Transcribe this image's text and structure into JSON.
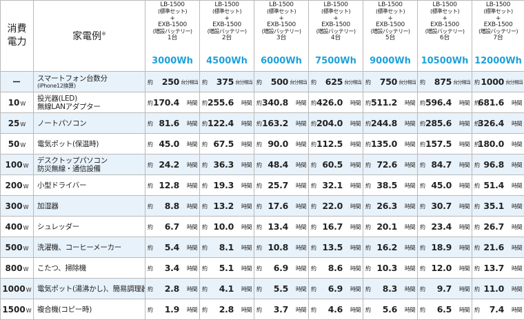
{
  "header": {
    "power_label_line1": "消費",
    "power_label_line2": "電力",
    "appliance_label": "家電例",
    "appliance_note": "※"
  },
  "config_lines": {
    "base_model": "LB-1500",
    "base_note": "(標準セット)",
    "plus": "+",
    "ext_model": "EXB-1500",
    "ext_note": "(増設バッテリー)"
  },
  "columns": [
    {
      "count": "1台",
      "capacity": "3000Wh"
    },
    {
      "count": "2台",
      "capacity": "4500Wh"
    },
    {
      "count": "3台",
      "capacity": "6000Wh"
    },
    {
      "count": "4台",
      "capacity": "7500Wh"
    },
    {
      "count": "5台",
      "capacity": "9000Wh"
    },
    {
      "count": "6台",
      "capacity": "10500Wh"
    },
    {
      "count": "7台",
      "capacity": "12000Wh"
    }
  ],
  "value_prefix": "約",
  "rows": [
    {
      "watt": "ー",
      "watt_unit": "",
      "appliance": "スマートフォン台数分",
      "appliance_sub": "(iPhone12換算)",
      "unit": "台分相当",
      "values": [
        "250",
        "375",
        "500",
        "625",
        "750",
        "875",
        "1000"
      ]
    },
    {
      "watt": "10",
      "watt_unit": "W",
      "appliance": "投光器(LED)",
      "appliance_sub": "無線LANアダプター",
      "unit": "時間",
      "values": [
        "170.4",
        "255.6",
        "340.8",
        "426.0",
        "511.2",
        "596.4",
        "681.6"
      ]
    },
    {
      "watt": "25",
      "watt_unit": "W",
      "appliance": "ノートパソコン",
      "appliance_sub": "",
      "unit": "時間",
      "values": [
        "81.6",
        "122.4",
        "163.2",
        "204.0",
        "244.8",
        "285.6",
        "326.4"
      ]
    },
    {
      "watt": "50",
      "watt_unit": "W",
      "appliance": "電気ポット(保温時)",
      "appliance_sub": "",
      "unit": "時間",
      "values": [
        "45.0",
        "67.5",
        "90.0",
        "112.5",
        "135.0",
        "157.5",
        "180.0"
      ]
    },
    {
      "watt": "100",
      "watt_unit": "W",
      "appliance": "デスクトップパソコン",
      "appliance_sub": "防災無線・通信設備",
      "unit": "時間",
      "values": [
        "24.2",
        "36.3",
        "48.4",
        "60.5",
        "72.6",
        "84.7",
        "96.8"
      ]
    },
    {
      "watt": "200",
      "watt_unit": "W",
      "appliance": "小型ドライバー",
      "appliance_sub": "",
      "unit": "時間",
      "values": [
        "12.8",
        "19.3",
        "25.7",
        "32.1",
        "38.5",
        "45.0",
        "51.4"
      ]
    },
    {
      "watt": "300",
      "watt_unit": "W",
      "appliance": "加湿器",
      "appliance_sub": "",
      "unit": "時間",
      "values": [
        "8.8",
        "13.2",
        "17.6",
        "22.0",
        "26.3",
        "30.7",
        "35.1"
      ]
    },
    {
      "watt": "400",
      "watt_unit": "W",
      "appliance": "シュレッダー",
      "appliance_sub": "",
      "unit": "時間",
      "values": [
        "6.7",
        "10.0",
        "13.4",
        "16.7",
        "20.1",
        "23.4",
        "26.7"
      ]
    },
    {
      "watt": "500",
      "watt_unit": "W",
      "appliance": "洗濯機、コーヒーメーカー",
      "appliance_sub": "",
      "unit": "時間",
      "values": [
        "5.4",
        "8.1",
        "10.8",
        "13.5",
        "16.2",
        "18.9",
        "21.6"
      ]
    },
    {
      "watt": "800",
      "watt_unit": "W",
      "appliance": "こたつ、掃除機",
      "appliance_sub": "",
      "unit": "時間",
      "values": [
        "3.4",
        "5.1",
        "6.9",
        "8.6",
        "10.3",
        "12.0",
        "13.7"
      ]
    },
    {
      "watt": "1000",
      "watt_unit": "W",
      "appliance": "電気ポット(湯沸かし)、簡易調理器",
      "appliance_sub": "",
      "unit": "時間",
      "values": [
        "2.8",
        "4.1",
        "5.5",
        "6.9",
        "8.3",
        "9.7",
        "11.0"
      ]
    },
    {
      "watt": "1500",
      "watt_unit": "W",
      "appliance": "複合機(コピー時)",
      "appliance_sub": "",
      "unit": "時間",
      "values": [
        "1.9",
        "2.8",
        "3.7",
        "4.6",
        "5.6",
        "6.5",
        "7.4"
      ]
    }
  ]
}
